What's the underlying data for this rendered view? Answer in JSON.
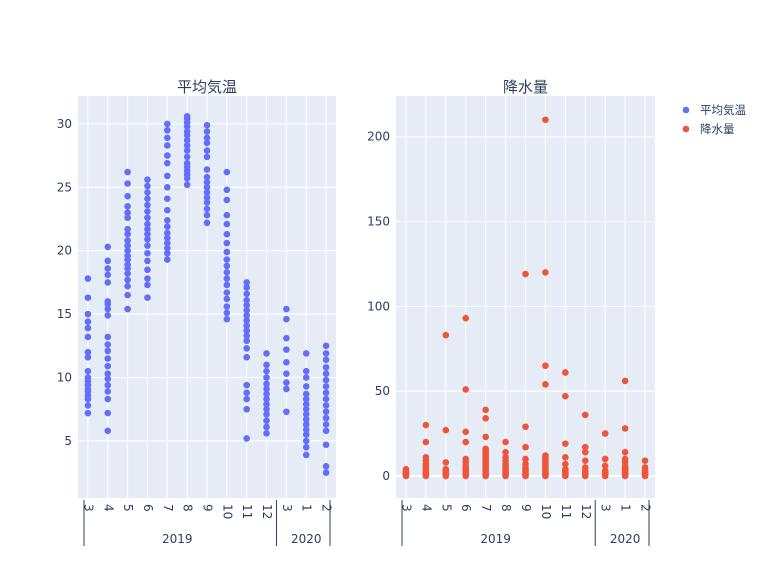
{
  "colors": {
    "plot_bg": "#e5ecf6",
    "grid": "#ffffff",
    "text": "#2a3f5f",
    "series_temp": "#636efa",
    "series_rain": "#ef553b"
  },
  "legend": {
    "placement": "top-right",
    "items": [
      {
        "name": "平均気温",
        "color": "#636efa"
      },
      {
        "name": "降水量",
        "color": "#ef553b"
      }
    ]
  },
  "chart_data": [
    {
      "type": "scatter",
      "title": "平均気温",
      "xlabel": "",
      "ylabel": "",
      "ylim": [
        0.5,
        32.2
      ],
      "yticks": [
        5,
        10,
        15,
        20,
        25,
        30
      ],
      "grid": true,
      "x_month_labels": [
        "3",
        "4",
        "5",
        "6",
        "7",
        "8",
        "9",
        "10",
        "11",
        "12",
        "3",
        "1",
        "2"
      ],
      "x_year_groups": [
        {
          "label": "2019",
          "count": 10
        },
        {
          "label": "2020",
          "count": 3
        }
      ],
      "series": [
        {
          "name": "平均気温",
          "values": [
            [
              7.2,
              7.8,
              8.3,
              8.6,
              8.9,
              9.1,
              9.4,
              9.7,
              10.0,
              10.5,
              11.6,
              12.0,
              13.2,
              13.9,
              14.4,
              15.0,
              16.3,
              17.8
            ],
            [
              5.8,
              7.2,
              8.3,
              8.9,
              9.4,
              9.9,
              10.3,
              10.9,
              11.5,
              12.1,
              12.6,
              13.2,
              14.9,
              15.4,
              15.8,
              16.0,
              17.5,
              18.1,
              18.6,
              19.2,
              20.3
            ],
            [
              15.4,
              16.5,
              17.2,
              17.7,
              18.2,
              18.6,
              18.9,
              19.3,
              19.6,
              20.0,
              20.4,
              20.8,
              21.3,
              21.7,
              22.6,
              23.0,
              23.5,
              24.3,
              25.3,
              26.2
            ],
            [
              16.3,
              17.3,
              17.8,
              18.5,
              19.2,
              19.8,
              20.4,
              20.9,
              21.3,
              21.7,
              22.1,
              22.6,
              23.1,
              23.6,
              24.1,
              24.6,
              25.1,
              25.6
            ],
            [
              19.3,
              19.8,
              20.2,
              20.6,
              21.0,
              21.4,
              21.9,
              22.4,
              23.2,
              24.1,
              25.0,
              25.9,
              26.9,
              27.5,
              28.3,
              28.9,
              29.5,
              30.0
            ],
            [
              25.2,
              25.7,
              26.0,
              26.3,
              26.6,
              26.9,
              27.4,
              27.9,
              28.3,
              28.7,
              29.1,
              29.4,
              29.8,
              30.1,
              30.4,
              30.6
            ],
            [
              22.2,
              22.8,
              23.3,
              23.8,
              24.2,
              24.6,
              25.0,
              25.4,
              25.8,
              26.4,
              27.4,
              27.9,
              28.5,
              28.9,
              29.4,
              29.9
            ],
            [
              14.6,
              15.1,
              15.6,
              16.2,
              16.7,
              17.3,
              17.8,
              18.3,
              18.8,
              19.3,
              19.9,
              20.6,
              21.3,
              22.1,
              22.8,
              24.0,
              24.8,
              26.2
            ],
            [
              5.2,
              7.5,
              8.3,
              8.8,
              9.4,
              11.6,
              12.3,
              12.9,
              13.3,
              13.7,
              14.1,
              14.5,
              14.9,
              15.3,
              15.7,
              16.1,
              16.6,
              17.1,
              17.5
            ],
            [
              5.6,
              6.1,
              6.6,
              7.1,
              7.5,
              7.9,
              8.3,
              8.7,
              9.1,
              9.5,
              10.0,
              10.5,
              11.0,
              11.9
            ],
            [
              7.3,
              9.1,
              9.6,
              10.3,
              11.2,
              12.2,
              13.1,
              14.6,
              15.4
            ],
            [
              3.9,
              4.5,
              5.0,
              5.5,
              5.9,
              6.3,
              6.7,
              7.1,
              7.5,
              7.9,
              8.3,
              8.7,
              9.3,
              10.0,
              10.5,
              11.9
            ],
            [
              2.5,
              3.0,
              4.7,
              5.8,
              6.3,
              6.8,
              7.3,
              7.8,
              8.3,
              8.8,
              9.3,
              9.8,
              10.3,
              10.8,
              11.4,
              11.9,
              12.5
            ]
          ]
        }
      ]
    },
    {
      "type": "scatter",
      "title": "降水量",
      "xlabel": "",
      "ylabel": "",
      "ylim": [
        -13,
        224
      ],
      "yticks": [
        0,
        50,
        100,
        150,
        200
      ],
      "grid": true,
      "x_month_labels": [
        "3",
        "4",
        "5",
        "6",
        "7",
        "8",
        "9",
        "10",
        "11",
        "12",
        "3",
        "1",
        "2"
      ],
      "x_year_groups": [
        {
          "label": "2019",
          "count": 10
        },
        {
          "label": "2020",
          "count": 3
        }
      ],
      "series": [
        {
          "name": "降水量",
          "values": [
            [
              0,
              0.5,
              1,
              1.5,
              2,
              2.5,
              3,
              4
            ],
            [
              0,
              0.5,
              1,
              1.5,
              2,
              3,
              4,
              5,
              6,
              7,
              9,
              11,
              20,
              30
            ],
            [
              0,
              0.5,
              1,
              2,
              3,
              4,
              8,
              27,
              83
            ],
            [
              0,
              0.5,
              1,
              1.5,
              2,
              3,
              4,
              5,
              6,
              8,
              10,
              20,
              26,
              51,
              93
            ],
            [
              0,
              0.5,
              1,
              1.5,
              2,
              3,
              4,
              5,
              6,
              7,
              8,
              9,
              10,
              11,
              12,
              13,
              14,
              15,
              16,
              23,
              34,
              39
            ],
            [
              0,
              0.5,
              1,
              1.5,
              2,
              3,
              4,
              5,
              6,
              7,
              9,
              11,
              14,
              20
            ],
            [
              0,
              0.5,
              1,
              2,
              3,
              4,
              5,
              7,
              10,
              17,
              29,
              119
            ],
            [
              0,
              0.5,
              1,
              2,
              3,
              4,
              5,
              6,
              7,
              8,
              9,
              10,
              11,
              12,
              54,
              65,
              120,
              210
            ],
            [
              0,
              0.5,
              1,
              2,
              3,
              4,
              7,
              11,
              19,
              47,
              61
            ],
            [
              0,
              0.5,
              1,
              2,
              3,
              5,
              9,
              14,
              17,
              36
            ],
            [
              0,
              0.5,
              1,
              2,
              3,
              6,
              10,
              25
            ],
            [
              0,
              0.5,
              1,
              1.5,
              2,
              3,
              4,
              5,
              6,
              8,
              10,
              14,
              28,
              56
            ],
            [
              0,
              0.5,
              1,
              2,
              3,
              5,
              9
            ]
          ]
        }
      ]
    }
  ]
}
